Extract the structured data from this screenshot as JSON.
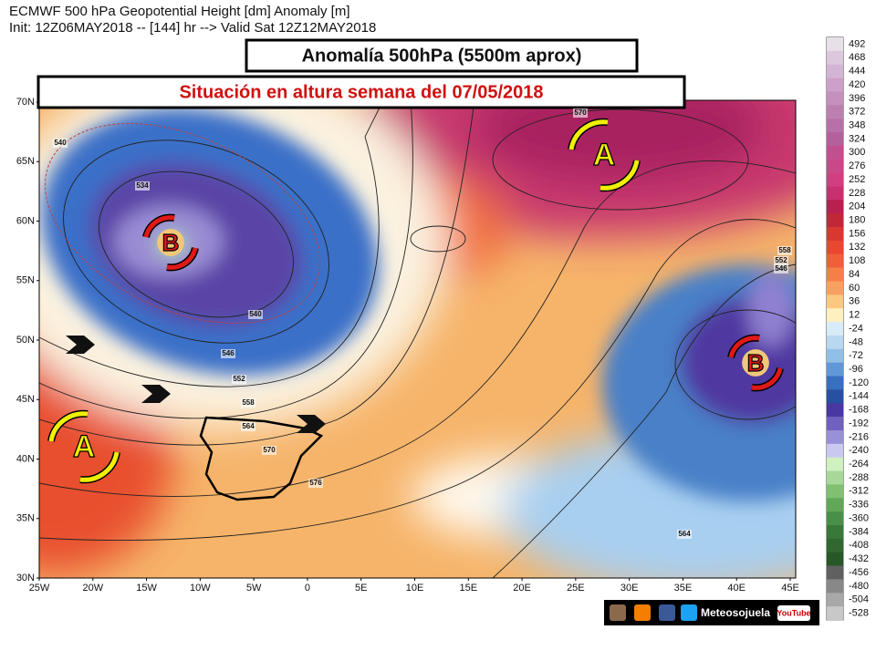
{
  "header": {
    "line1": "ECMWF 500 hPa Geopotential Height [dm] Anomaly [m]",
    "line2": "Init: 12Z06MAY2018 -- [144] hr --> Valid Sat 12Z12MAY2018"
  },
  "titles": [
    "Anomalía 500hPa (5500m aprox)",
    "Situación en altura semana del 07/05/2018"
  ],
  "latitude_labels": [
    "70N",
    "65N",
    "60N",
    "55N",
    "50N",
    "45N",
    "40N",
    "35N",
    "30N"
  ],
  "longitude_labels": [
    "25W",
    "20W",
    "15W",
    "10W",
    "5W",
    "0",
    "5E",
    "10E",
    "15E",
    "20E",
    "25E",
    "30E",
    "35E",
    "40E",
    "45E"
  ],
  "colorbar": {
    "labels": [
      492,
      468,
      444,
      420,
      396,
      372,
      348,
      324,
      300,
      276,
      252,
      228,
      204,
      180,
      156,
      132,
      108,
      84,
      60,
      36,
      12,
      -24,
      -48,
      -72,
      -96,
      -120,
      -144,
      -168,
      -192,
      -216,
      -240,
      -264,
      -288,
      -312,
      -336,
      -360,
      -384,
      -408,
      -432,
      -456,
      -480,
      -504,
      -528
    ],
    "colors": [
      "#e8e0e8",
      "#dcc8dc",
      "#d4b4d4",
      "#cca0c8",
      "#c490bc",
      "#bc80b0",
      "#b870a8",
      "#b4609c",
      "#c05090",
      "#c84888",
      "#d04080",
      "#c83070",
      "#b82050",
      "#c02838",
      "#d83830",
      "#e84830",
      "#f06038",
      "#f48048",
      "#f8a060",
      "#fcc880",
      "#fff0c0",
      "#d8ecf8",
      "#b8d8f0",
      "#90c0e8",
      "#6098d8",
      "#3870c0",
      "#2850a0",
      "#4838a0",
      "#7060c0",
      "#9890d8",
      "#c8c8f0",
      "#d0f0c0",
      "#a8d898",
      "#80c070",
      "#60a858",
      "#489048",
      "#387838",
      "#306830",
      "#285828",
      "#606060",
      "#888888",
      "#a8a8a8",
      "#c8c8c8"
    ]
  },
  "contour_labels": [
    "540",
    "534",
    "540",
    "546",
    "552",
    "558",
    "564",
    "570",
    "576",
    "570",
    "558",
    "552",
    "546",
    "564"
  ],
  "pressure_centers": [
    "A",
    "B",
    "B",
    "A"
  ],
  "footer": {
    "brand": "Meteosojuela",
    "video": "YouTube"
  }
}
